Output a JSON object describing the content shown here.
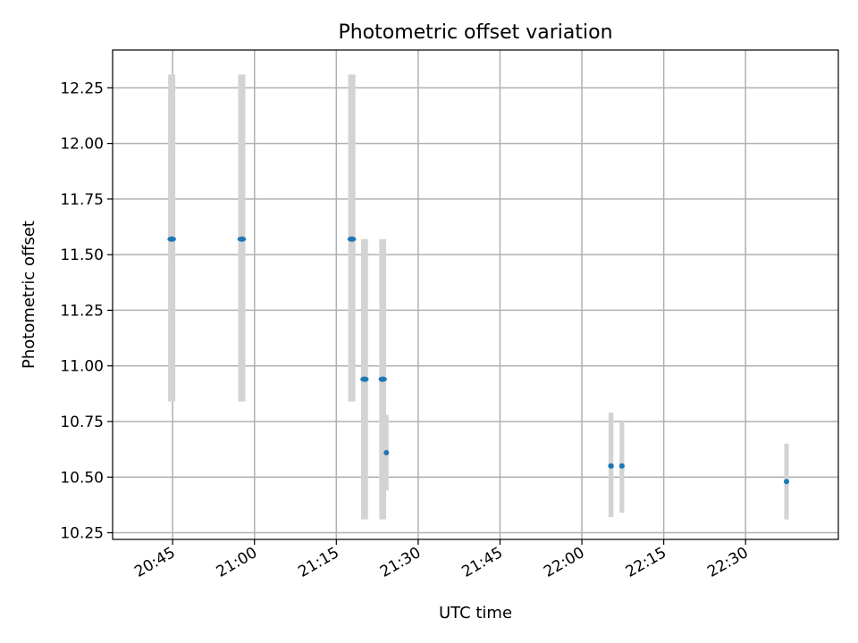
{
  "chart_data": {
    "type": "scatter",
    "title": "Photometric offset variation",
    "xlabel": "UTC time",
    "ylabel": "Photometric offset",
    "x_is_time": true,
    "xlim": [
      "20:34",
      "22:47"
    ],
    "ylim": [
      10.22,
      12.42
    ],
    "x_ticks": [
      "20:45",
      "21:00",
      "21:15",
      "21:30",
      "21:45",
      "22:00",
      "22:15",
      "22:30"
    ],
    "y_ticks": [
      "10.25",
      "10.50",
      "10.75",
      "11.00",
      "11.25",
      "11.50",
      "11.75",
      "12.00",
      "12.25"
    ],
    "grid": true,
    "marker_color": "#1f77b4",
    "errorbar_color": "#d3d3d3",
    "series": [
      {
        "points": [
          {
            "x": "20:44:50",
            "y": 11.57,
            "ylow": 10.84,
            "yhigh": 12.31
          },
          {
            "x": "20:57:40",
            "y": 11.57,
            "ylow": 10.84,
            "yhigh": 12.31
          },
          {
            "x": "21:17:50",
            "y": 11.57,
            "ylow": 10.84,
            "yhigh": 12.31
          },
          {
            "x": "21:20:10",
            "y": 10.94,
            "ylow": 10.31,
            "yhigh": 11.57
          },
          {
            "x": "21:23:30",
            "y": 10.94,
            "ylow": 10.31,
            "yhigh": 11.57
          },
          {
            "x": "21:24:10",
            "y": 10.61,
            "ylow": 10.44,
            "yhigh": 10.78
          },
          {
            "x": "22:05:20",
            "y": 10.55,
            "ylow": 10.32,
            "yhigh": 10.79
          },
          {
            "x": "22:07:20",
            "y": 10.55,
            "ylow": 10.34,
            "yhigh": 10.75
          },
          {
            "x": "22:37:30",
            "y": 10.48,
            "ylow": 10.31,
            "yhigh": 10.65
          }
        ]
      }
    ]
  }
}
